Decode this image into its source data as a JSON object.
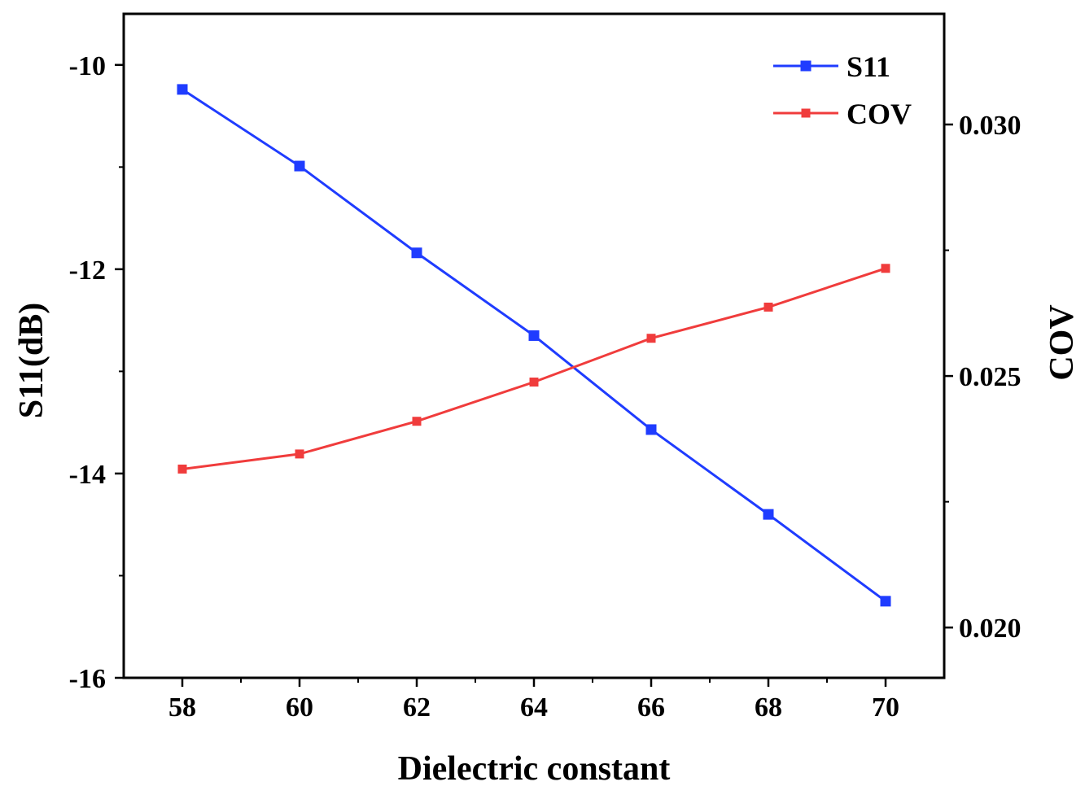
{
  "chart_data": {
    "type": "line",
    "title": "",
    "xlabel": "Dielectric constant",
    "ylabel": "S11(dB)",
    "y2label": "COV",
    "x": [
      58,
      60,
      62,
      64,
      66,
      68,
      70
    ],
    "x_ticks": [
      "58",
      "60",
      "62",
      "64",
      "66",
      "68",
      "70"
    ],
    "xlim": [
      57,
      71
    ],
    "ylim": [
      -16,
      -9.5
    ],
    "y_ticks": [
      "-10",
      "-12",
      "-14",
      "-16"
    ],
    "y2lim": [
      0.019,
      0.0322
    ],
    "y2_ticks": [
      "0.030",
      "0.025",
      "0.020"
    ],
    "series": [
      {
        "name": "S11",
        "axis": "left",
        "color": "#1f3cff",
        "values": [
          -10.24,
          -10.99,
          -11.84,
          -12.65,
          -13.57,
          -14.4,
          -15.25
        ]
      },
      {
        "name": "COV",
        "axis": "right",
        "color": "#f03c3c",
        "values": [
          0.02315,
          0.02345,
          0.0241,
          0.02488,
          0.02575,
          0.02637,
          0.02714
        ]
      }
    ],
    "legend": "top-right",
    "grid": false
  }
}
